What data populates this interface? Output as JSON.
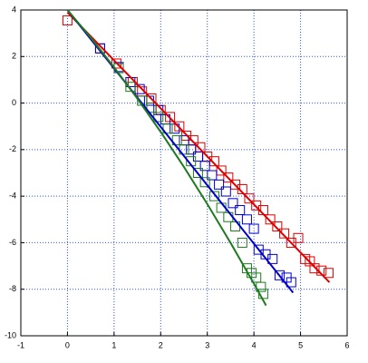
{
  "chart_data": {
    "type": "scatter",
    "xlim": [
      -1,
      6
    ],
    "ylim": [
      -10,
      4
    ],
    "xticks": [
      -1,
      0,
      1,
      2,
      3,
      4,
      5,
      6
    ],
    "yticks": [
      -10,
      -8,
      -6,
      -4,
      -2,
      0,
      2,
      4
    ],
    "grid": true,
    "series": [
      {
        "mode": "markers",
        "color": "#dd0000",
        "x": [
          0,
          0.7,
          1.05,
          1.4,
          1.6,
          1.8,
          2.0,
          2.2,
          2.4,
          2.55,
          2.7,
          2.85,
          3.0,
          3.15,
          3.3,
          3.45,
          3.6,
          3.75,
          3.9,
          4.05,
          4.2,
          4.35,
          4.5,
          4.65,
          4.8,
          4.95,
          5.1,
          5.2,
          5.3,
          5.45,
          5.6
        ],
        "values": [
          3.55,
          2.35,
          1.7,
          0.9,
          0.5,
          0.2,
          -0.3,
          -0.6,
          -1.0,
          -1.4,
          -1.6,
          -1.9,
          -2.3,
          -2.5,
          -2.9,
          -3.2,
          -3.5,
          -3.7,
          -4.1,
          -4.4,
          -4.6,
          -5.0,
          -5.3,
          -5.6,
          -6.0,
          -5.8,
          -6.7,
          -6.8,
          -7.1,
          -7.2,
          -7.3
        ]
      },
      {
        "mode": "markers",
        "color": "#0000cc",
        "x": [
          0.7,
          1.1,
          1.35,
          1.55,
          1.75,
          1.95,
          2.1,
          2.3,
          2.5,
          2.65,
          2.8,
          2.95,
          3.1,
          3.25,
          3.4,
          3.55,
          3.7,
          3.85,
          4.0,
          4.1,
          4.25,
          4.4,
          4.55,
          4.7,
          4.8
        ],
        "values": [
          2.35,
          1.55,
          0.9,
          0.6,
          0.1,
          -0.3,
          -0.7,
          -1.1,
          -1.6,
          -2.0,
          -2.3,
          -2.7,
          -3.1,
          -3.5,
          -3.8,
          -4.3,
          -4.6,
          -5.0,
          -5.4,
          -6.3,
          -6.5,
          -6.7,
          -7.4,
          -7.5,
          -7.7
        ]
      },
      {
        "mode": "markers",
        "color": "#1e7a1e",
        "x": [
          1.1,
          1.35,
          1.6,
          1.8,
          1.95,
          2.15,
          2.35,
          2.5,
          2.65,
          2.8,
          2.95,
          3.15,
          3.3,
          3.45,
          3.6,
          3.75,
          3.85,
          3.95,
          4.05,
          4.15,
          4.2
        ],
        "values": [
          1.5,
          0.7,
          0.1,
          -0.2,
          -0.6,
          -1.1,
          -1.6,
          -2.0,
          -2.5,
          -3.0,
          -3.4,
          -4.0,
          -4.5,
          -4.9,
          -5.3,
          -6.0,
          -7.1,
          -7.3,
          -7.5,
          -7.9,
          -8.2
        ]
      },
      {
        "mode": "line",
        "color": "#dd0000",
        "x": [
          0,
          5.62
        ],
        "values": [
          3.9,
          -7.7
        ]
      },
      {
        "mode": "line",
        "color": "#0000cc",
        "x": [
          0,
          4.84
        ],
        "values": [
          4,
          -8.15
        ]
      },
      {
        "mode": "line",
        "color": "#1e7a1e",
        "x": [
          0,
          0.5,
          1,
          1.5,
          2,
          2.5,
          3,
          3.5,
          4,
          4.26
        ],
        "values": [
          4,
          2.81,
          1.54,
          0.19,
          -1.24,
          -2.75,
          -4.34,
          -6.01,
          -7.76,
          -8.7
        ]
      }
    ]
  }
}
